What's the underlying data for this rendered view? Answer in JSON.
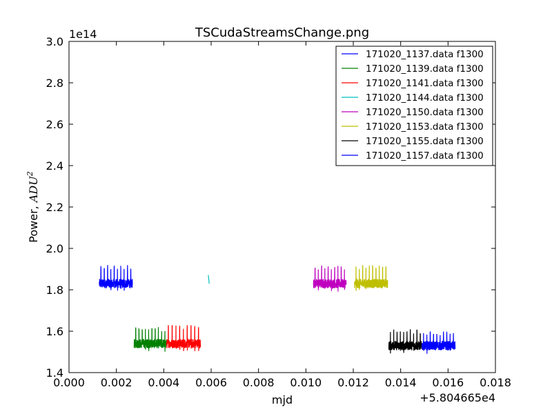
{
  "chart_data": {
    "type": "line",
    "title": "TSCudaStreamsChange.png",
    "xlabel": "mjd",
    "ylabel": "Power, ",
    "ylabel_math": "ADU",
    "ylabel_math_sup": "2",
    "x_offset_label": "+5.804665e4",
    "y_scale_label": "1e14",
    "xlim": [
      0.0,
      0.018
    ],
    "ylim": [
      1.4,
      3.0
    ],
    "x_ticks": [
      "0.000",
      "0.002",
      "0.004",
      "0.006",
      "0.008",
      "0.010",
      "0.012",
      "0.014",
      "0.016",
      "0.018"
    ],
    "y_ticks": [
      "1.4",
      "1.6",
      "1.8",
      "2.0",
      "2.2",
      "2.4",
      "2.6",
      "2.8",
      "3.0"
    ],
    "legend_position": "top-right",
    "series": [
      {
        "name": "171020_1137.data f1300",
        "color": "#0000ff",
        "x_range": [
          0.00128,
          0.00268
        ],
        "base": 1.83,
        "spike_top": 1.92,
        "spikes": 10
      },
      {
        "name": "171020_1139.data f1300",
        "color": "#008000",
        "x_range": [
          0.00275,
          0.00412
        ],
        "base": 1.54,
        "spike_top": 1.62,
        "spikes": 10
      },
      {
        "name": "171020_1141.data f1300",
        "color": "#ff0000",
        "x_range": [
          0.00412,
          0.00555
        ],
        "base": 1.54,
        "spike_top": 1.63,
        "spikes": 9
      },
      {
        "name": "171020_1144.data f1300",
        "color": "#00bfbf",
        "x_range": [
          0.00588,
          0.00592
        ],
        "base": 1.83,
        "spike_top": 1.87,
        "spikes": 1
      },
      {
        "name": "171020_1150.data f1300",
        "color": "#bf00bf",
        "x_range": [
          0.01032,
          0.0117
        ],
        "base": 1.83,
        "spike_top": 1.92,
        "spikes": 10
      },
      {
        "name": "171020_1153.data f1300",
        "color": "#bfbf00",
        "x_range": [
          0.01205,
          0.01345
        ],
        "base": 1.83,
        "spike_top": 1.92,
        "spikes": 10
      },
      {
        "name": "171020_1155.data f1300",
        "color": "#000000",
        "x_range": [
          0.0135,
          0.0149
        ],
        "base": 1.53,
        "spike_top": 1.61,
        "spikes": 10
      },
      {
        "name": "171020_1157.data f1300",
        "color": "#0000ff",
        "x_range": [
          0.0149,
          0.0163
        ],
        "base": 1.53,
        "spike_top": 1.6,
        "spikes": 10
      }
    ]
  }
}
